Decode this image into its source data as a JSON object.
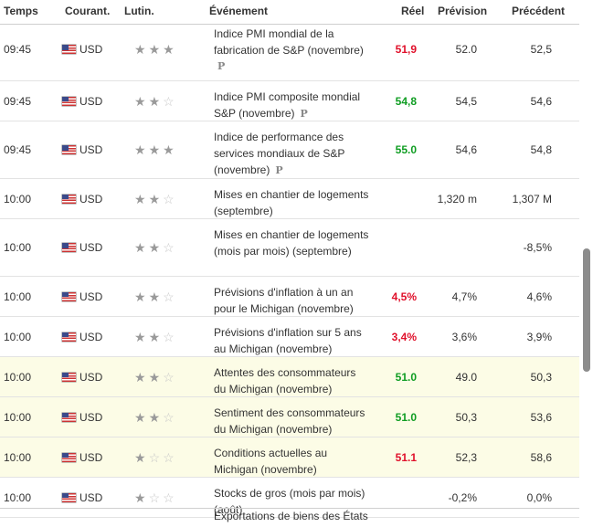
{
  "headers": {
    "time": "Temps",
    "currency": "Courant.",
    "importance": "Lutin.",
    "event": "Événement",
    "actual": "Réel",
    "forecast": "Prévision",
    "previous": "Précédent"
  },
  "rows": [
    {
      "time": "09:45",
      "currency": "USD",
      "stars": 3,
      "event": "Indice PMI mondial de la fabrication de S&P (novembre)",
      "prelim": "P",
      "actual": "51,9",
      "actual_color": "red",
      "forecast": "52.0",
      "previous": "52,5",
      "highlight": false
    },
    {
      "time": "09:45",
      "currency": "USD",
      "stars": 2,
      "event": "Indice PMI composite mondial S&P (novembre)",
      "prelim": "P",
      "actual": "54,8",
      "actual_color": "green",
      "forecast": "54,5",
      "previous": "54,6",
      "highlight": false
    },
    {
      "time": "09:45",
      "currency": "USD",
      "stars": 3,
      "event": "Indice de performance des services mondiaux de S&P (novembre)",
      "prelim": "P",
      "actual": "55.0",
      "actual_color": "green",
      "forecast": "54,6",
      "previous": "54,8",
      "highlight": false
    },
    {
      "time": "10:00",
      "currency": "USD",
      "stars": 2,
      "event": "Mises en chantier de logements (septembre)",
      "prelim": "",
      "actual": "",
      "actual_color": "",
      "forecast": "1,320 m",
      "previous": "1,307 M",
      "highlight": false
    },
    {
      "time": "10:00",
      "currency": "USD",
      "stars": 2,
      "event": "Mises en chantier de logements (mois par mois) (septembre)",
      "prelim": "",
      "actual": "",
      "actual_color": "",
      "forecast": "",
      "previous": "-8,5%",
      "highlight": false
    },
    {
      "time": "10:00",
      "currency": "USD",
      "stars": 2,
      "event": "Prévisions d'inflation à un an pour le Michigan (novembre)",
      "prelim": "",
      "actual": "4,5%",
      "actual_color": "red",
      "forecast": "4,7%",
      "previous": "4,6%",
      "highlight": false
    },
    {
      "time": "10:00",
      "currency": "USD",
      "stars": 2,
      "event": "Prévisions d'inflation sur 5 ans au Michigan (novembre)",
      "prelim": "",
      "actual": "3,4%",
      "actual_color": "red",
      "forecast": "3,6%",
      "previous": "3,9%",
      "highlight": false
    },
    {
      "time": "10:00",
      "currency": "USD",
      "stars": 2,
      "event": "Attentes des consommateurs du Michigan (novembre)",
      "prelim": "",
      "actual": "51.0",
      "actual_color": "green",
      "forecast": "49.0",
      "previous": "50,3",
      "highlight": true
    },
    {
      "time": "10:00",
      "currency": "USD",
      "stars": 2,
      "event": "Sentiment des consommateurs du Michigan (novembre)",
      "prelim": "",
      "actual": "51.0",
      "actual_color": "green",
      "forecast": "50,3",
      "previous": "53,6",
      "highlight": true
    },
    {
      "time": "10:00",
      "currency": "USD",
      "stars": 1,
      "event": "Conditions actuelles au Michigan (novembre)",
      "prelim": "",
      "actual": "51.1",
      "actual_color": "red",
      "forecast": "52,3",
      "previous": "58,6",
      "highlight": true
    },
    {
      "time": "10:00",
      "currency": "USD",
      "stars": 1,
      "event": "Stocks de gros (mois par mois) (août)",
      "prelim": "",
      "actual": "",
      "actual_color": "",
      "forecast": "-0,2%",
      "previous": "0,0%",
      "highlight": false
    }
  ],
  "partial_next_row": "Exportations de biens des États",
  "icons": {
    "flag": "us-flag-icon",
    "star": "star-icon",
    "prelim": "preliminary-p-icon"
  }
}
